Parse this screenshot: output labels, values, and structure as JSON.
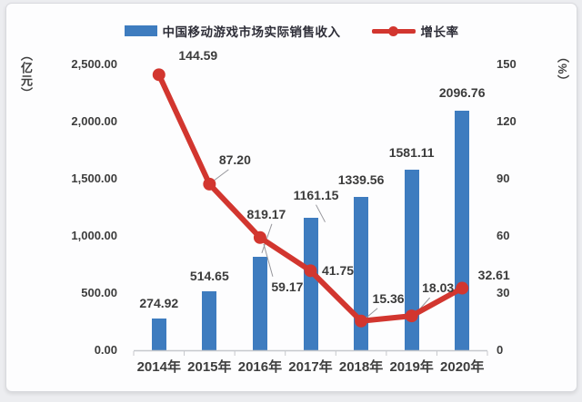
{
  "legend": {
    "series1": "中国移动游戏市场实际销售收入",
    "series2": "增长率"
  },
  "axes": {
    "left_title": "（亿元）",
    "right_title": "（%）",
    "left_ticks": [
      "2,500.00",
      "2,000.00",
      "1,500.00",
      "1,000.00",
      "500.00",
      "0.00"
    ],
    "right_ticks": [
      "150",
      "120",
      "90",
      "60",
      "30",
      "0"
    ]
  },
  "chart_data": {
    "type": "bar",
    "note": "combination chart: bars on left axis, line on right axis",
    "categories": [
      "2014年",
      "2015年",
      "2016年",
      "2017年",
      "2018年",
      "2019年",
      "2020年"
    ],
    "series": [
      {
        "name": "中国移动游戏市场实际销售收入",
        "type": "bar",
        "axis": "left",
        "unit": "亿元",
        "values": [
          274.92,
          514.65,
          819.17,
          1161.15,
          1339.56,
          1581.11,
          2096.76
        ]
      },
      {
        "name": "增长率",
        "type": "line",
        "axis": "right",
        "unit": "%",
        "values": [
          144.59,
          87.2,
          59.17,
          41.75,
          15.36,
          18.03,
          32.61
        ]
      }
    ],
    "left_axis": {
      "label": "（亿元）",
      "min": 0,
      "max": 2500,
      "step": 500
    },
    "right_axis": {
      "label": "（%）",
      "min": 0,
      "max": 150,
      "step": 30
    },
    "grid": false,
    "legend_position": "top",
    "data_labels": true,
    "label_decimals": 2
  },
  "colors": {
    "bar": "#3E7CBF",
    "line": "#D2362F",
    "label_text": "#3B3B3B",
    "tick_text": "#3D3D3D",
    "legend_text": "#2E2E38",
    "axis_line": "#C6C8CC",
    "leader_line": "#96969B",
    "card_bg": "#FDFDFE",
    "page_bg": "#ECEDF0"
  }
}
